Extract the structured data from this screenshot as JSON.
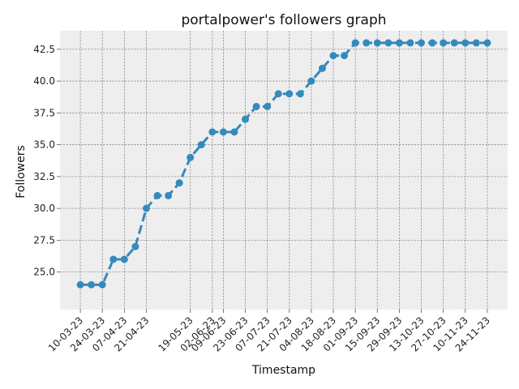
{
  "chart_data": {
    "type": "line",
    "title": "portalpower's followers graph",
    "xlabel": "Timestamp",
    "ylabel": "Followers",
    "x": [
      "10-03-23",
      "17-03-23",
      "24-03-23",
      "31-03-23",
      "07-04-23",
      "14-04-23",
      "21-04-23",
      "28-04-23",
      "05-05-23",
      "12-05-23",
      "19-05-23",
      "26-05-23",
      "02-06-23",
      "09-06-23",
      "16-06-23",
      "23-06-23",
      "30-06-23",
      "07-07-23",
      "14-07-23",
      "21-07-23",
      "28-07-23",
      "04-08-23",
      "11-08-23",
      "18-08-23",
      "25-08-23",
      "01-09-23",
      "08-09-23",
      "15-09-23",
      "22-09-23",
      "29-09-23",
      "06-10-23",
      "13-10-23",
      "20-10-23",
      "27-10-23",
      "03-11-23",
      "10-11-23",
      "17-11-23",
      "24-11-23"
    ],
    "series": [
      {
        "values": [
          24,
          24,
          24,
          26,
          26,
          27,
          30,
          31,
          31,
          32,
          34,
          35,
          36,
          36,
          36,
          37,
          38,
          38,
          39,
          39,
          39,
          40,
          41,
          42,
          42,
          43,
          43,
          43,
          43,
          43,
          43,
          43,
          43,
          43,
          43,
          43,
          43,
          43
        ]
      }
    ],
    "x_tick_labels": [
      "10-03-23",
      "24-03-23",
      "07-04-23",
      "21-04-23",
      "19-05-23",
      "02-06-23",
      "09-06-23",
      "23-06-23",
      "07-07-23",
      "21-07-23",
      "04-08-23",
      "18-08-23",
      "01-09-23",
      "15-09-23",
      "29-09-23",
      "13-10-23",
      "27-10-23",
      "10-11-23",
      "24-11-23"
    ],
    "x_tick_positions": [
      0,
      2,
      4,
      6,
      10,
      12,
      13,
      15,
      17,
      19,
      21,
      23,
      25,
      27,
      29,
      31,
      33,
      35,
      37
    ],
    "yticks": [
      "25.0",
      "27.5",
      "30.0",
      "32.5",
      "35.0",
      "37.5",
      "40.0",
      "42.5"
    ],
    "ylim": [
      22.05,
      43.95
    ],
    "grid": true,
    "line_style": "dashed",
    "colors": {
      "line": "#348abd",
      "plot_bg": "#eeeeee",
      "grid": "#8a8a8a"
    }
  }
}
